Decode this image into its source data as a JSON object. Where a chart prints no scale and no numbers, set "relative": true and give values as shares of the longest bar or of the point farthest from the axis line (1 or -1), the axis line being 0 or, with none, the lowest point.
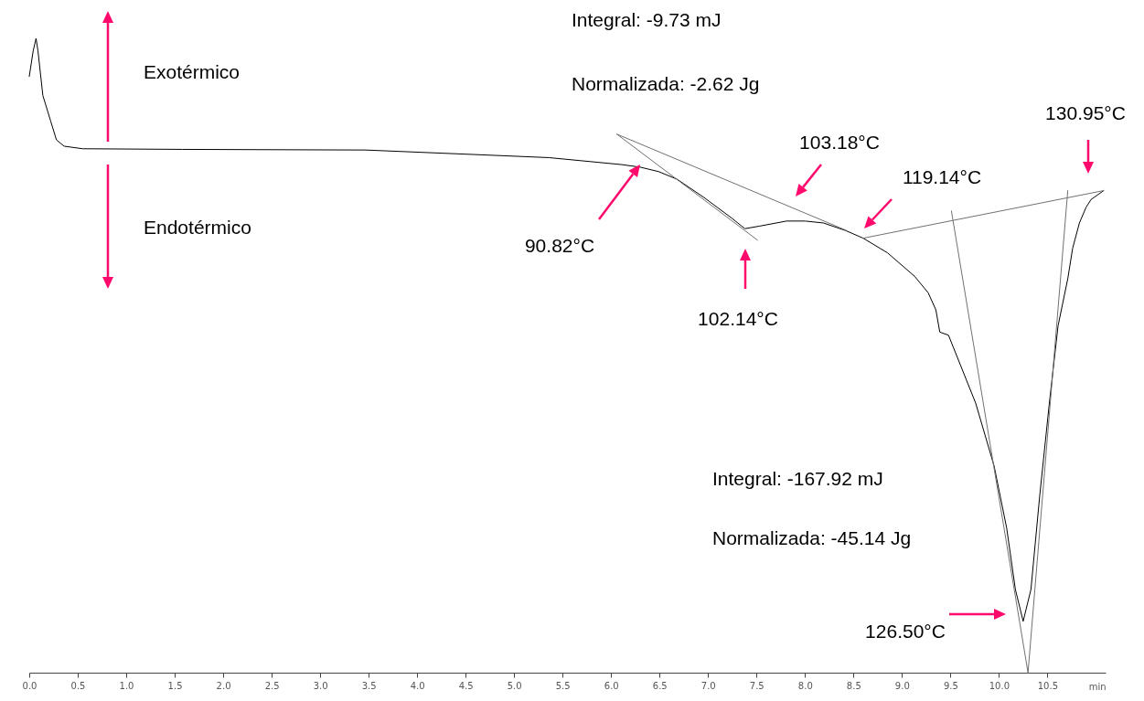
{
  "chart_data": {
    "type": "line",
    "relative": true,
    "xlabel": "min",
    "xlim": [
      0,
      11.1
    ],
    "xticks": [
      {
        "value": 0,
        "label": "0.0"
      },
      {
        "value": 0.5,
        "label": "0.5"
      },
      {
        "value": 1,
        "label": "1.0"
      },
      {
        "value": 1.5,
        "label": "1.5"
      },
      {
        "value": 2,
        "label": "2.0"
      },
      {
        "value": 2.5,
        "label": "2.5"
      },
      {
        "value": 3,
        "label": "3.0"
      },
      {
        "value": 3.5,
        "label": "3.5"
      },
      {
        "value": 4,
        "label": "4.0"
      },
      {
        "value": 4.5,
        "label": "4.5"
      },
      {
        "value": 5,
        "label": "5.0"
      },
      {
        "value": 5.5,
        "label": "5.5"
      },
      {
        "value": 6,
        "label": "6.0"
      },
      {
        "value": 6.5,
        "label": "6.5"
      },
      {
        "value": 7,
        "label": "7.0"
      },
      {
        "value": 7.5,
        "label": "7.5"
      },
      {
        "value": 8,
        "label": "8.0"
      },
      {
        "value": 8.5,
        "label": "8.5"
      },
      {
        "value": 9,
        "label": "9.0"
      },
      {
        "value": 9.5,
        "label": "9.5"
      },
      {
        "value": 10,
        "label": "10.0"
      },
      {
        "value": 10.5,
        "label": "10.5"
      }
    ],
    "series": [
      {
        "color": "#000000",
        "x": [
          0,
          0.04,
          0.07,
          0.09,
          0.14,
          0.22,
          0.28,
          0.36,
          0.55,
          1.58,
          3.47,
          5.36,
          6.11,
          6.3,
          6.49,
          6.68,
          6.96,
          7.25,
          7.38,
          7.53,
          7.81,
          8,
          8.19,
          8.42,
          8.6,
          8.85,
          9.13,
          9.27,
          9.35,
          9.39,
          9.48,
          9.76,
          9.95,
          10.08,
          10.17,
          10.25,
          10.33,
          10.42,
          10.52,
          10.61,
          10.71,
          10.76,
          10.83,
          10.9,
          10.95,
          11.08
        ],
        "values": [
          0.94,
          0.98,
          1,
          0.98,
          0.91,
          0.87,
          0.84,
          0.83,
          0.826,
          0.825,
          0.824,
          0.812,
          0.801,
          0.797,
          0.79,
          0.778,
          0.749,
          0.716,
          0.7,
          0.704,
          0.712,
          0.712,
          0.709,
          0.697,
          0.685,
          0.662,
          0.625,
          0.599,
          0.572,
          0.537,
          0.532,
          0.425,
          0.326,
          0.228,
          0.131,
          0.081,
          0.131,
          0.278,
          0.425,
          0.547,
          0.621,
          0.669,
          0.709,
          0.734,
          0.746,
          0.76
        ]
      },
      {
        "color": "#707070",
        "x": [
          8.6,
          11.08
        ],
        "values": [
          0.685,
          0.76
        ]
      },
      {
        "color": "#707070",
        "x": [
          9.51,
          10.3
        ],
        "values": [
          0.728,
          0
        ]
      },
      {
        "color": "#707070",
        "x": [
          10.71,
          10.3
        ],
        "values": [
          0.76,
          0
        ]
      },
      {
        "color": "#707070",
        "x": [
          6.06,
          8.43
        ],
        "values": [
          0.849,
          0.697
        ]
      },
      {
        "color": "#707070",
        "x": [
          6.06,
          7.51
        ],
        "values": [
          0.849,
          0.682
        ]
      }
    ],
    "annotations": [
      "Exotérmico",
      "Endotérmico",
      "Integral: -9.73 mJ",
      "Normalizada: -2.62 Jg",
      "Integral: -167.92 mJ",
      "Normalizada: -45.14 Jg",
      "90.82°C",
      "102.14°C",
      "103.18°C",
      "119.14°C",
      "130.95°C",
      "126.50°C"
    ]
  }
}
